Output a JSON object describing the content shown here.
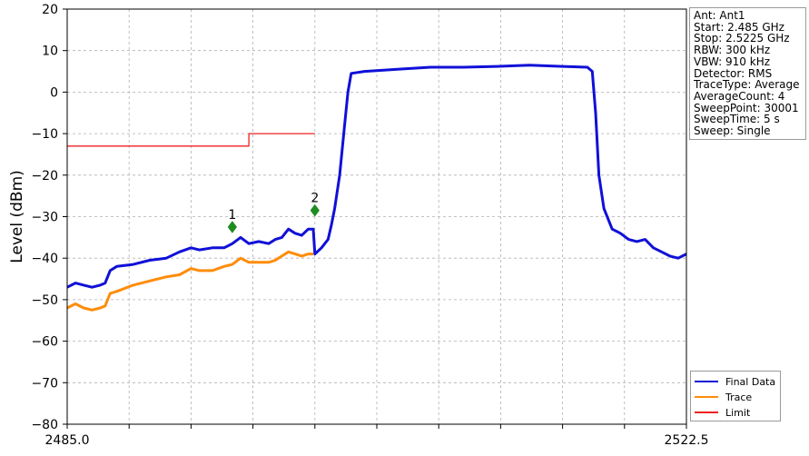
{
  "info": {
    "lines": [
      "Ant: Ant1",
      "Start: 2.485 GHz",
      "Stop: 2.5225 GHz",
      "RBW: 300 kHz",
      "VBW: 910 kHz",
      "Detector: RMS",
      "TraceType: Average",
      "AverageCount: 4",
      "SweepPoint: 30001",
      "SweepTime: 5 s",
      "Sweep: Single"
    ]
  },
  "legend": {
    "items": [
      {
        "label": "Final Data",
        "color": "#1010d8"
      },
      {
        "label": "Trace",
        "color": "#ff8c0a"
      },
      {
        "label": "Limit",
        "color": "#ee2222"
      }
    ]
  },
  "chart_data": {
    "type": "line",
    "ylabel": "Level (dBm)",
    "xlim": [
      2485.0,
      2522.5
    ],
    "ylim": [
      -80,
      20
    ],
    "x_tick_labels": [
      "2485.0",
      "2522.5"
    ],
    "y_ticks": [
      20,
      10,
      0,
      -10,
      -20,
      -30,
      -40,
      -50,
      -60,
      -70,
      -80
    ],
    "y_tick_labels": [
      "20",
      "10",
      "0",
      "−10",
      "−20",
      "−30",
      "−40",
      "−50",
      "−60",
      "−70",
      "−80"
    ],
    "grid": true,
    "legend_position": "bottom-right-outside",
    "series": [
      {
        "name": "Final Data",
        "color": "#1010d8",
        "points": [
          [
            2485.0,
            -47.0
          ],
          [
            2485.5,
            -46.0
          ],
          [
            2486.0,
            -46.5
          ],
          [
            2486.5,
            -47.0
          ],
          [
            2487.0,
            -46.5
          ],
          [
            2487.3,
            -46.0
          ],
          [
            2487.6,
            -43.0
          ],
          [
            2488.0,
            -42.0
          ],
          [
            2489.0,
            -41.5
          ],
          [
            2490.0,
            -40.5
          ],
          [
            2491.0,
            -40.0
          ],
          [
            2491.8,
            -38.5
          ],
          [
            2492.5,
            -37.5
          ],
          [
            2493.0,
            -38.0
          ],
          [
            2493.8,
            -37.5
          ],
          [
            2494.5,
            -37.5
          ],
          [
            2495.0,
            -36.5
          ],
          [
            2495.5,
            -35.0
          ],
          [
            2496.0,
            -36.5
          ],
          [
            2496.6,
            -36.0
          ],
          [
            2497.2,
            -36.5
          ],
          [
            2497.6,
            -35.5
          ],
          [
            2498.0,
            -35.0
          ],
          [
            2498.4,
            -33.0
          ],
          [
            2498.8,
            -34.0
          ],
          [
            2499.2,
            -34.5
          ],
          [
            2499.6,
            -33.0
          ],
          [
            2499.9,
            -33.0
          ],
          [
            2500.0,
            -39.0
          ],
          [
            2500.4,
            -37.5
          ],
          [
            2500.8,
            -35.5
          ],
          [
            2501.0,
            -32.0
          ],
          [
            2501.2,
            -28.0
          ],
          [
            2501.5,
            -20.0
          ],
          [
            2501.8,
            -8.0
          ],
          [
            2502.0,
            0.0
          ],
          [
            2502.2,
            4.5
          ],
          [
            2503.0,
            5.0
          ],
          [
            2505.0,
            5.5
          ],
          [
            2507.0,
            6.0
          ],
          [
            2509.0,
            6.0
          ],
          [
            2511.0,
            6.2
          ],
          [
            2513.0,
            6.5
          ],
          [
            2515.0,
            6.2
          ],
          [
            2516.5,
            6.0
          ],
          [
            2516.8,
            5.0
          ],
          [
            2517.0,
            -5.0
          ],
          [
            2517.2,
            -20.0
          ],
          [
            2517.5,
            -28.0
          ],
          [
            2518.0,
            -33.0
          ],
          [
            2518.5,
            -34.0
          ],
          [
            2519.0,
            -35.5
          ],
          [
            2519.5,
            -36.0
          ],
          [
            2520.0,
            -35.5
          ],
          [
            2520.5,
            -37.5
          ],
          [
            2521.0,
            -38.5
          ],
          [
            2521.5,
            -39.5
          ],
          [
            2522.0,
            -40.0
          ],
          [
            2522.5,
            -39.0
          ]
        ]
      },
      {
        "name": "Trace",
        "color": "#ff8c0a",
        "points": [
          [
            2485.0,
            -52.0
          ],
          [
            2485.5,
            -51.0
          ],
          [
            2486.0,
            -52.0
          ],
          [
            2486.5,
            -52.5
          ],
          [
            2487.0,
            -52.0
          ],
          [
            2487.3,
            -51.5
          ],
          [
            2487.6,
            -48.5
          ],
          [
            2488.0,
            -48.0
          ],
          [
            2489.0,
            -46.5
          ],
          [
            2490.0,
            -45.5
          ],
          [
            2491.0,
            -44.5
          ],
          [
            2491.8,
            -44.0
          ],
          [
            2492.5,
            -42.5
          ],
          [
            2493.0,
            -43.0
          ],
          [
            2493.8,
            -43.0
          ],
          [
            2494.5,
            -42.0
          ],
          [
            2495.0,
            -41.5
          ],
          [
            2495.5,
            -40.0
          ],
          [
            2496.0,
            -41.0
          ],
          [
            2496.6,
            -41.0
          ],
          [
            2497.2,
            -41.0
          ],
          [
            2497.6,
            -40.5
          ],
          [
            2498.0,
            -39.5
          ],
          [
            2498.4,
            -38.5
          ],
          [
            2498.8,
            -39.0
          ],
          [
            2499.2,
            -39.5
          ],
          [
            2499.6,
            -39.0
          ],
          [
            2499.9,
            -39.0
          ]
        ]
      },
      {
        "name": "Limit",
        "color": "#ee2222",
        "points": [
          [
            2485.0,
            -13.0
          ],
          [
            2496.0,
            -13.0
          ],
          [
            2496.0,
            -10.0
          ],
          [
            2500.0,
            -10.0
          ]
        ]
      }
    ],
    "markers": [
      {
        "label": "1",
        "x": 2495.0,
        "y": -32.5,
        "color": "#1e8c1e"
      },
      {
        "label": "2",
        "x": 2500.0,
        "y": -28.5,
        "color": "#1e8c1e"
      }
    ]
  }
}
